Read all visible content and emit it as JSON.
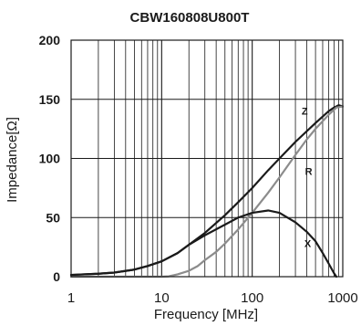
{
  "chart_data": {
    "type": "line",
    "title": "CBW160808U800T",
    "xlabel": "Frequency [MHz]",
    "ylabel": "Impedance[Ω]",
    "x_scale": "log",
    "xlim": [
      1,
      1000
    ],
    "ylim": [
      0,
      200
    ],
    "grid": true,
    "x_ticks": [
      {
        "value": 1,
        "label": "1"
      },
      {
        "value": 10,
        "label": "10"
      },
      {
        "value": 100,
        "label": "100"
      },
      {
        "value": 1000,
        "label": "1000"
      }
    ],
    "y_ticks": [
      {
        "value": 0,
        "label": "0"
      },
      {
        "value": 50,
        "label": "50"
      },
      {
        "value": 100,
        "label": "100"
      },
      {
        "value": 150,
        "label": "150"
      },
      {
        "value": 200,
        "label": "200"
      }
    ],
    "series": [
      {
        "name": "Z",
        "color": "#1a1a1a",
        "label_at": {
          "x": 380,
          "y": 140
        },
        "points": [
          [
            1,
            1.5
          ],
          [
            2,
            2.5
          ],
          [
            3,
            3.5
          ],
          [
            5,
            6
          ],
          [
            7,
            9
          ],
          [
            10,
            13
          ],
          [
            15,
            20
          ],
          [
            20,
            27
          ],
          [
            30,
            37
          ],
          [
            50,
            52
          ],
          [
            70,
            63
          ],
          [
            100,
            75
          ],
          [
            150,
            90
          ],
          [
            200,
            100
          ],
          [
            300,
            114
          ],
          [
            500,
            130
          ],
          [
            700,
            140
          ],
          [
            800,
            143
          ],
          [
            900,
            145
          ],
          [
            1000,
            144
          ]
        ]
      },
      {
        "name": "R",
        "color": "#8c8c8c",
        "label_at": {
          "x": 420,
          "y": 89
        },
        "points": [
          [
            1,
            0
          ],
          [
            10,
            0
          ],
          [
            12,
            0.3
          ],
          [
            15,
            2
          ],
          [
            20,
            5
          ],
          [
            25,
            9
          ],
          [
            30,
            14
          ],
          [
            40,
            21
          ],
          [
            50,
            28
          ],
          [
            70,
            40
          ],
          [
            100,
            54
          ],
          [
            150,
            71
          ],
          [
            200,
            84
          ],
          [
            300,
            103
          ],
          [
            400,
            116
          ],
          [
            500,
            125
          ],
          [
            700,
            137
          ],
          [
            850,
            143
          ],
          [
            1000,
            144
          ]
        ]
      },
      {
        "name": "X",
        "color": "#1a1a1a",
        "label_at": {
          "x": 410,
          "y": 28
        },
        "points": [
          [
            1,
            1.5
          ],
          [
            2,
            2.5
          ],
          [
            3,
            3.5
          ],
          [
            5,
            6
          ],
          [
            7,
            9
          ],
          [
            10,
            13
          ],
          [
            15,
            20
          ],
          [
            20,
            27
          ],
          [
            30,
            35
          ],
          [
            50,
            44
          ],
          [
            70,
            50
          ],
          [
            100,
            54
          ],
          [
            150,
            56
          ],
          [
            200,
            54
          ],
          [
            300,
            46
          ],
          [
            400,
            38
          ],
          [
            500,
            30
          ],
          [
            600,
            20
          ],
          [
            700,
            11
          ],
          [
            800,
            3
          ],
          [
            850,
            0
          ]
        ]
      }
    ]
  }
}
